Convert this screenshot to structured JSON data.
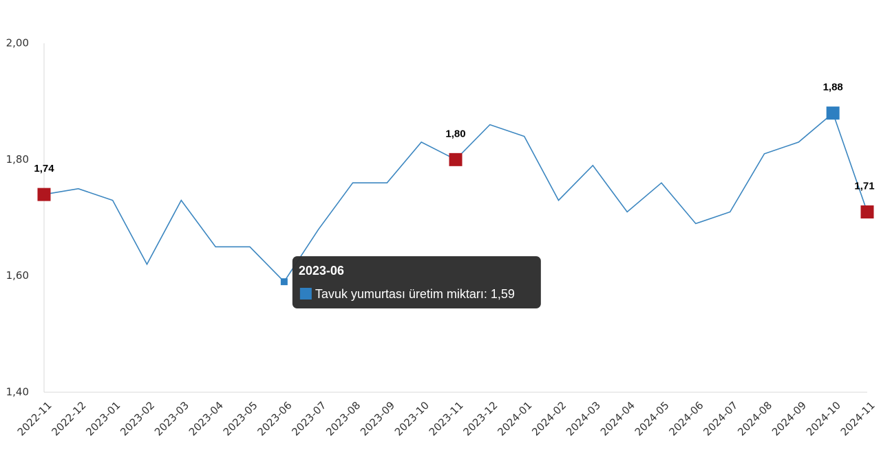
{
  "chart_data": {
    "type": "line",
    "x": [
      "2022-11",
      "2022-12",
      "2023-01",
      "2023-02",
      "2023-03",
      "2023-04",
      "2023-05",
      "2023-06",
      "2023-07",
      "2023-08",
      "2023-09",
      "2023-10",
      "2023-11",
      "2023-12",
      "2024-01",
      "2024-02",
      "2024-03",
      "2024-04",
      "2024-05",
      "2024-06",
      "2024-07",
      "2024-08",
      "2024-09",
      "2024-10",
      "2024-11"
    ],
    "series": [
      {
        "name": "Tavuk yumurtası üretim miktarı",
        "values": [
          1.74,
          1.75,
          1.73,
          1.62,
          1.73,
          1.65,
          1.65,
          1.59,
          1.68,
          1.76,
          1.76,
          1.83,
          1.8,
          1.86,
          1.84,
          1.73,
          1.79,
          1.71,
          1.76,
          1.69,
          1.71,
          1.81,
          1.83,
          1.88,
          1.71
        ]
      }
    ],
    "ylim": [
      1.4,
      2.0
    ],
    "yticks": [
      1.4,
      1.6,
      1.8,
      2.0
    ],
    "ytick_labels": [
      "1,40",
      "1,60",
      "1,80",
      "2,00"
    ],
    "title": "",
    "xlabel": "",
    "ylabel": "",
    "grid": false,
    "line_color": "#3b86c0",
    "highlighted_points": [
      {
        "x": "2022-11",
        "label": "1,74",
        "color": "#b0161e"
      },
      {
        "x": "2023-11",
        "label": "1,80",
        "color": "#b0161e"
      },
      {
        "x": "2024-10",
        "label": "1,88",
        "color": "#2e7fc1"
      },
      {
        "x": "2024-11",
        "label": "1,71",
        "color": "#b0161e"
      }
    ]
  },
  "tooltip": {
    "title": "2023-06",
    "text": "Tavuk yumurtası üretim miktarı: 1,59",
    "swatch_color": "#2e7fc1",
    "point_x": "2023-06"
  }
}
